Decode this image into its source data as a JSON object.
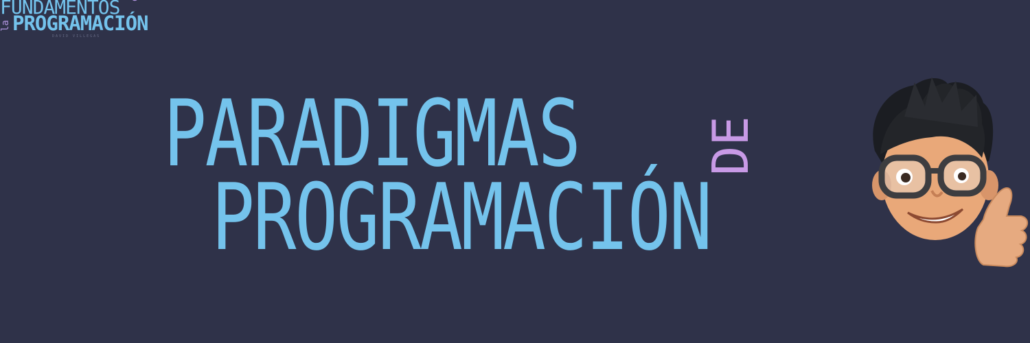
{
  "logo": {
    "line1": "FUNDAMENTOS",
    "line1_small": "de",
    "line2_small": "la",
    "line2": "PROGRAMACIÓN",
    "author": "DAVID VILLEGAS"
  },
  "title": {
    "line1": "PARADIGMAS",
    "connector": "DE",
    "line2": "PROGRAMACIÓN"
  },
  "colors": {
    "background": "#2f3249",
    "title": "#74c3ec",
    "accent": "#c89ae6"
  },
  "avatar": {
    "icon": "memoji-thumbs-up"
  }
}
